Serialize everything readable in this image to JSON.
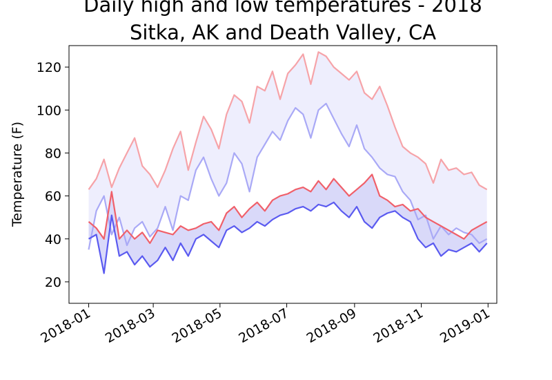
{
  "chart_data": {
    "type": "line",
    "title_line1": "Daily high and low temperatures - 2018",
    "title_line2": "Sitka, AK and Death Valley, CA",
    "xlabel": "",
    "ylabel": "Temperature (F)",
    "x_tick_labels": [
      "2018-01",
      "2018-03",
      "2018-05",
      "2018-07",
      "2018-09",
      "2018-11",
      "2019-01"
    ],
    "y_tick_labels": [
      "20",
      "40",
      "60",
      "80",
      "100",
      "120"
    ],
    "y_ticks": [
      20,
      40,
      60,
      80,
      100,
      120
    ],
    "xlim": [
      "2017-12-14",
      "2019-01-09"
    ],
    "ylim": [
      10,
      130
    ],
    "grid": false,
    "colors": {
      "dv_high": "#f6a3a8",
      "dv_low": "#a9a9f6",
      "dv_fill": "#eeeefd",
      "sitka_high": "#f0606a",
      "sitka_low": "#5a5af0",
      "sitka_fill": "#d9d9f9"
    },
    "series": [
      {
        "key": "dv_high",
        "dates": [
          "2018-01-01",
          "2018-01-08",
          "2018-01-15",
          "2018-01-22",
          "2018-01-29",
          "2018-02-05",
          "2018-02-12",
          "2018-02-19",
          "2018-02-26",
          "2018-03-05",
          "2018-03-12",
          "2018-03-19",
          "2018-03-26",
          "2018-04-02",
          "2018-04-09",
          "2018-04-16",
          "2018-04-23",
          "2018-04-30",
          "2018-05-07",
          "2018-05-14",
          "2018-05-21",
          "2018-05-28",
          "2018-06-04",
          "2018-06-11",
          "2018-06-18",
          "2018-06-25",
          "2018-07-02",
          "2018-07-09",
          "2018-07-16",
          "2018-07-23",
          "2018-07-30",
          "2018-08-06",
          "2018-08-13",
          "2018-08-20",
          "2018-08-27",
          "2018-09-03",
          "2018-09-10",
          "2018-09-17",
          "2018-09-24",
          "2018-10-01",
          "2018-10-08",
          "2018-10-15",
          "2018-10-22",
          "2018-10-29",
          "2018-11-05",
          "2018-11-12",
          "2018-11-19",
          "2018-11-26",
          "2018-12-03",
          "2018-12-10",
          "2018-12-17",
          "2018-12-24",
          "2018-12-31"
        ],
        "values": [
          63,
          68,
          77,
          64,
          73,
          80,
          87,
          74,
          70,
          64,
          72,
          82,
          90,
          72,
          85,
          97,
          91,
          82,
          98,
          107,
          104,
          94,
          111,
          109,
          118,
          105,
          117,
          121,
          126,
          112,
          127,
          125,
          120,
          117,
          114,
          118,
          108,
          105,
          111,
          102,
          92,
          83,
          80,
          78,
          75,
          66,
          77,
          72,
          73,
          70,
          71,
          65,
          63
        ]
      },
      {
        "key": "dv_low",
        "dates": [
          "2018-01-01",
          "2018-01-08",
          "2018-01-15",
          "2018-01-22",
          "2018-01-29",
          "2018-02-05",
          "2018-02-12",
          "2018-02-19",
          "2018-02-26",
          "2018-03-05",
          "2018-03-12",
          "2018-03-19",
          "2018-03-26",
          "2018-04-02",
          "2018-04-09",
          "2018-04-16",
          "2018-04-23",
          "2018-04-30",
          "2018-05-07",
          "2018-05-14",
          "2018-05-21",
          "2018-05-28",
          "2018-06-04",
          "2018-06-11",
          "2018-06-18",
          "2018-06-25",
          "2018-07-02",
          "2018-07-09",
          "2018-07-16",
          "2018-07-23",
          "2018-07-30",
          "2018-08-06",
          "2018-08-13",
          "2018-08-20",
          "2018-08-27",
          "2018-09-03",
          "2018-09-10",
          "2018-09-17",
          "2018-09-24",
          "2018-10-01",
          "2018-10-08",
          "2018-10-15",
          "2018-10-22",
          "2018-10-29",
          "2018-11-05",
          "2018-11-12",
          "2018-11-19",
          "2018-11-26",
          "2018-12-03",
          "2018-12-10",
          "2018-12-17",
          "2018-12-24",
          "2018-12-31"
        ],
        "values": [
          35,
          53,
          60,
          42,
          50,
          37,
          45,
          48,
          41,
          45,
          55,
          44,
          60,
          58,
          72,
          78,
          68,
          60,
          66,
          80,
          75,
          62,
          78,
          84,
          90,
          86,
          95,
          101,
          98,
          87,
          100,
          103,
          96,
          89,
          83,
          93,
          82,
          78,
          73,
          70,
          69,
          62,
          58,
          49,
          51,
          40,
          46,
          42,
          45,
          43,
          42,
          38,
          40
        ]
      },
      {
        "key": "sitka_high",
        "dates": [
          "2018-01-01",
          "2018-01-08",
          "2018-01-15",
          "2018-01-22",
          "2018-01-29",
          "2018-02-05",
          "2018-02-12",
          "2018-02-19",
          "2018-02-26",
          "2018-03-05",
          "2018-03-12",
          "2018-03-19",
          "2018-03-26",
          "2018-04-02",
          "2018-04-09",
          "2018-04-16",
          "2018-04-23",
          "2018-04-30",
          "2018-05-07",
          "2018-05-14",
          "2018-05-21",
          "2018-05-28",
          "2018-06-04",
          "2018-06-11",
          "2018-06-18",
          "2018-06-25",
          "2018-07-02",
          "2018-07-09",
          "2018-07-16",
          "2018-07-23",
          "2018-07-30",
          "2018-08-06",
          "2018-08-13",
          "2018-08-20",
          "2018-08-27",
          "2018-09-03",
          "2018-09-10",
          "2018-09-17",
          "2018-09-24",
          "2018-10-01",
          "2018-10-08",
          "2018-10-15",
          "2018-10-22",
          "2018-10-29",
          "2018-11-05",
          "2018-11-12",
          "2018-11-19",
          "2018-11-26",
          "2018-12-03",
          "2018-12-10",
          "2018-12-17",
          "2018-12-24",
          "2018-12-31"
        ],
        "values": [
          48,
          45,
          40,
          62,
          40,
          44,
          40,
          43,
          38,
          44,
          43,
          42,
          46,
          44,
          45,
          47,
          48,
          44,
          52,
          55,
          50,
          54,
          57,
          53,
          58,
          60,
          61,
          63,
          64,
          62,
          67,
          63,
          68,
          64,
          60,
          63,
          66,
          70,
          60,
          58,
          55,
          56,
          53,
          54,
          50,
          48,
          46,
          44,
          42,
          40,
          44,
          46,
          48
        ]
      },
      {
        "key": "sitka_low",
        "dates": [
          "2018-01-01",
          "2018-01-08",
          "2018-01-15",
          "2018-01-22",
          "2018-01-29",
          "2018-02-05",
          "2018-02-12",
          "2018-02-19",
          "2018-02-26",
          "2018-03-05",
          "2018-03-12",
          "2018-03-19",
          "2018-03-26",
          "2018-04-02",
          "2018-04-09",
          "2018-04-16",
          "2018-04-23",
          "2018-04-30",
          "2018-05-07",
          "2018-05-14",
          "2018-05-21",
          "2018-05-28",
          "2018-06-04",
          "2018-06-11",
          "2018-06-18",
          "2018-06-25",
          "2018-07-02",
          "2018-07-09",
          "2018-07-16",
          "2018-07-23",
          "2018-07-30",
          "2018-08-06",
          "2018-08-13",
          "2018-08-20",
          "2018-08-27",
          "2018-09-03",
          "2018-09-10",
          "2018-09-17",
          "2018-09-24",
          "2018-10-01",
          "2018-10-08",
          "2018-10-15",
          "2018-10-22",
          "2018-10-29",
          "2018-11-05",
          "2018-11-12",
          "2018-11-19",
          "2018-11-26",
          "2018-12-03",
          "2018-12-10",
          "2018-12-17",
          "2018-12-24",
          "2018-12-31"
        ],
        "values": [
          40,
          42,
          24,
          51,
          32,
          34,
          28,
          32,
          27,
          30,
          36,
          30,
          38,
          32,
          40,
          42,
          39,
          36,
          44,
          46,
          43,
          45,
          48,
          46,
          49,
          51,
          52,
          54,
          55,
          53,
          56,
          55,
          57,
          53,
          50,
          55,
          48,
          45,
          50,
          52,
          53,
          50,
          48,
          40,
          36,
          38,
          32,
          35,
          34,
          36,
          38,
          34,
          38
        ]
      }
    ]
  }
}
